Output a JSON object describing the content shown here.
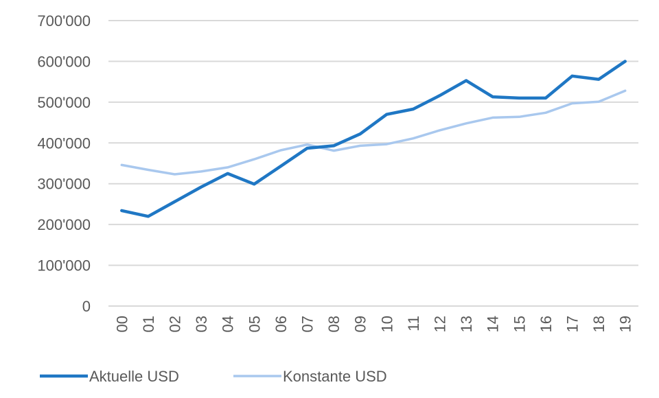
{
  "chart_data": {
    "type": "line",
    "title": "",
    "xlabel": "",
    "ylabel": "",
    "categories": [
      "00",
      "01",
      "02",
      "03",
      "04",
      "05",
      "06",
      "07",
      "08",
      "09",
      "10",
      "11",
      "12",
      "13",
      "14",
      "15",
      "16",
      "17",
      "18",
      "19"
    ],
    "y_ticks": [
      0,
      100000,
      200000,
      300000,
      400000,
      500000,
      600000,
      700000
    ],
    "y_tick_labels": [
      "0",
      "100'000",
      "200'000",
      "300'000",
      "400'000",
      "500'000",
      "600'000",
      "700'000"
    ],
    "ylim": [
      0,
      700000
    ],
    "grid": true,
    "legend_position": "bottom-left",
    "series": [
      {
        "name": "Aktuelle USD",
        "color": "#1f77c4",
        "values": [
          234000,
          220000,
          256000,
          292000,
          325000,
          299000,
          343000,
          387000,
          393000,
          422000,
          470000,
          483000,
          516000,
          553000,
          513000,
          510000,
          510000,
          564000,
          556000,
          600000
        ]
      },
      {
        "name": "Konstante USD",
        "color": "#a9c8ee",
        "values": [
          346000,
          334000,
          323000,
          330000,
          340000,
          360000,
          382000,
          396000,
          381000,
          393000,
          397000,
          411000,
          431000,
          448000,
          462000,
          464000,
          474000,
          497000,
          501000,
          528000
        ]
      }
    ]
  }
}
